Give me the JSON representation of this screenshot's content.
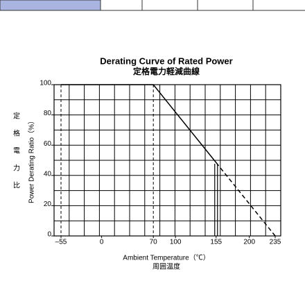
{
  "chart_data": {
    "type": "line",
    "title": "Derating Curve of Rated Power",
    "subtitle": "定格電力軽減曲線",
    "y_label": "Power Derating Ratio（%）",
    "y_label_vertical": [
      "定",
      "格",
      "電",
      "力",
      "比"
    ],
    "x_label": "Ambient Temperature（℃）",
    "x_label_sub": "周囲温度",
    "series": [
      {
        "color": "#000000",
        "style": "solid",
        "x": [
          -55,
          70,
          155
        ],
        "values": [
          100,
          100,
          48.5
        ]
      },
      {
        "color": "#000000",
        "style": "dashed",
        "x": [
          155,
          235
        ],
        "values": [
          48.5,
          0
        ]
      }
    ],
    "markers": [
      {
        "x": -55,
        "style": "dashed"
      },
      {
        "x": 70,
        "style": "dashed"
      },
      {
        "x": 155,
        "style": "solid"
      }
    ],
    "xlim": [
      -64.4,
      242.5
    ],
    "ylim": [
      0,
      100
    ],
    "xticks": [
      {
        "value": -55,
        "label": "–55"
      },
      0,
      70,
      100,
      155,
      200,
      235
    ],
    "yticks": [
      0,
      20,
      40,
      60,
      80,
      100
    ],
    "grid": true
  }
}
